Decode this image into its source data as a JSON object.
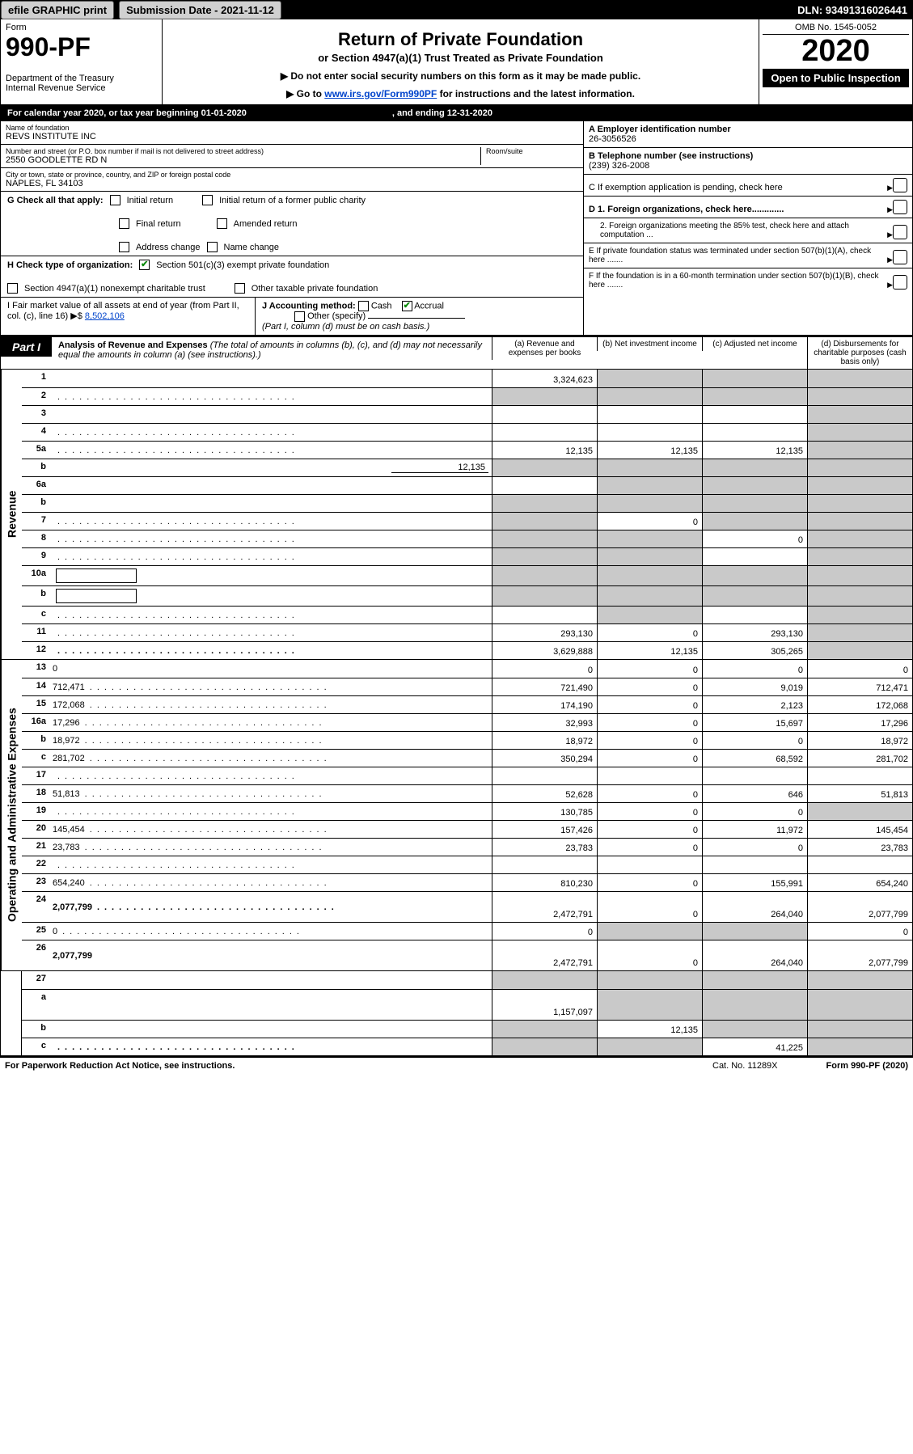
{
  "topbar": {
    "efile": "efile GRAPHIC print",
    "submission": "Submission Date - 2021-11-12",
    "dln": "DLN: 93491316026441"
  },
  "header": {
    "form_label": "Form",
    "form_number": "990-PF",
    "dept": "Department of the Treasury",
    "irs": "Internal Revenue Service",
    "title": "Return of Private Foundation",
    "subtitle": "or Section 4947(a)(1) Trust Treated as Private Foundation",
    "instr1": "▶ Do not enter social security numbers on this form as it may be made public.",
    "instr2_pre": "▶ Go to ",
    "instr2_link": "www.irs.gov/Form990PF",
    "instr2_post": " for instructions and the latest information.",
    "omb": "OMB No. 1545-0052",
    "year": "2020",
    "open": "Open to Public Inspection"
  },
  "calendar": {
    "begin": "For calendar year 2020, or tax year beginning 01-01-2020",
    "end": ", and ending 12-31-2020"
  },
  "ident": {
    "name_lbl": "Name of foundation",
    "name": "REVS INSTITUTE INC",
    "addr_lbl": "Number and street (or P.O. box number if mail is not delivered to street address)",
    "addr": "2550 GOODLETTE RD N",
    "room_lbl": "Room/suite",
    "city_lbl": "City or town, state or province, country, and ZIP or foreign postal code",
    "city": "NAPLES, FL  34103",
    "a_lbl": "A Employer identification number",
    "a_val": "26-3056526",
    "b_lbl": "B Telephone number (see instructions)",
    "b_val": "(239) 326-2008",
    "c_lbl": "C If exemption application is pending, check here",
    "d1": "D 1. Foreign organizations, check here.............",
    "d2": "2. Foreign organizations meeting the 85% test, check here and attach computation ...",
    "e": "E  If private foundation status was terminated under section 507(b)(1)(A), check here .......",
    "f": "F  If the foundation is in a 60-month termination under section 507(b)(1)(B), check here .......",
    "g_lbl": "G Check all that apply:",
    "g_initial": "Initial return",
    "g_initial_former": "Initial return of a former public charity",
    "g_final": "Final return",
    "g_amended": "Amended return",
    "g_addr": "Address change",
    "g_name": "Name change",
    "h_lbl": "H Check type of organization:",
    "h_501c3": "Section 501(c)(3) exempt private foundation",
    "h_4947": "Section 4947(a)(1) nonexempt charitable trust",
    "h_other": "Other taxable private foundation",
    "i_lbl": "I Fair market value of all assets at end of year (from Part II, col. (c), line 16) ▶$ ",
    "i_val": "8,502,106",
    "j_lbl": "J Accounting method:",
    "j_cash": "Cash",
    "j_accrual": "Accrual",
    "j_other": "Other (specify)",
    "j_note": "(Part I, column (d) must be on cash basis.)"
  },
  "part": {
    "label": "Part I",
    "title": "Analysis of Revenue and Expenses",
    "note": " (The total of amounts in columns (b), (c), and (d) may not necessarily equal the amounts in column (a) (see instructions).)",
    "col_a": "(a)  Revenue and expenses per books",
    "col_b": "(b)  Net investment income",
    "col_c": "(c)  Adjusted net income",
    "col_d": "(d)  Disbursements for charitable purposes (cash basis only)"
  },
  "sections": {
    "revenue": "Revenue",
    "expenses": "Operating and Administrative Expenses"
  },
  "lines": {
    "1": {
      "n": "1",
      "d": "",
      "a": "3,324,623",
      "b": "",
      "c": "",
      "bgray": true,
      "cgray": true,
      "dgray": true
    },
    "2": {
      "n": "2",
      "d": "",
      "a": "",
      "b": "",
      "c": "",
      "agray": true,
      "bgray": true,
      "cgray": true,
      "dgray": true,
      "dots": true
    },
    "3": {
      "n": "3",
      "d": "",
      "a": "",
      "b": "",
      "c": "",
      "dgray": true
    },
    "4": {
      "n": "4",
      "d": "",
      "a": "",
      "b": "",
      "c": "",
      "dgray": true,
      "dots": true
    },
    "5a": {
      "n": "5a",
      "d": "",
      "a": "12,135",
      "b": "12,135",
      "c": "12,135",
      "dgray": true,
      "dots": true
    },
    "5b": {
      "n": "b",
      "d": "",
      "inset": "12,135",
      "a": "",
      "b": "",
      "c": "",
      "agray": true,
      "bgray": true,
      "cgray": true,
      "dgray": true
    },
    "6a": {
      "n": "6a",
      "d": "",
      "a": "",
      "b": "",
      "c": "",
      "bgray": true,
      "cgray": true,
      "dgray": true
    },
    "6b": {
      "n": "b",
      "d": "",
      "a": "",
      "b": "",
      "c": "",
      "agray": true,
      "bgray": true,
      "cgray": true,
      "dgray": true
    },
    "7": {
      "n": "7",
      "d": "",
      "a": "",
      "b": "0",
      "c": "",
      "agray": true,
      "cgray": true,
      "dgray": true,
      "dots": true
    },
    "8": {
      "n": "8",
      "d": "",
      "a": "",
      "b": "",
      "c": "0",
      "agray": true,
      "bgray": true,
      "dgray": true,
      "dots": true
    },
    "9": {
      "n": "9",
      "d": "",
      "a": "",
      "b": "",
      "c": "",
      "agray": true,
      "bgray": true,
      "dgray": true,
      "dots": true
    },
    "10a": {
      "n": "10a",
      "d": "",
      "a": "",
      "b": "",
      "c": "",
      "agray": true,
      "bgray": true,
      "cgray": true,
      "dgray": true,
      "box": true
    },
    "10b": {
      "n": "b",
      "d": "",
      "a": "",
      "b": "",
      "c": "",
      "agray": true,
      "bgray": true,
      "cgray": true,
      "dgray": true,
      "box": true,
      "dots": true
    },
    "10c": {
      "n": "c",
      "d": "",
      "a": "",
      "b": "",
      "c": "",
      "bgray": true,
      "dgray": true,
      "dots": true
    },
    "11": {
      "n": "11",
      "d": "",
      "a": "293,130",
      "b": "0",
      "c": "293,130",
      "dgray": true,
      "dots": true
    },
    "12": {
      "n": "12",
      "d": "",
      "a": "3,629,888",
      "b": "12,135",
      "c": "305,265",
      "dgray": true,
      "bold": true,
      "dots": true
    },
    "13": {
      "n": "13",
      "d": "0",
      "a": "0",
      "b": "0",
      "c": "0"
    },
    "14": {
      "n": "14",
      "d": "712,471",
      "a": "721,490",
      "b": "0",
      "c": "9,019",
      "dots": true
    },
    "15": {
      "n": "15",
      "d": "172,068",
      "a": "174,190",
      "b": "0",
      "c": "2,123",
      "dots": true
    },
    "16a": {
      "n": "16a",
      "d": "17,296",
      "a": "32,993",
      "b": "0",
      "c": "15,697",
      "dots": true
    },
    "16b": {
      "n": "b",
      "d": "18,972",
      "a": "18,972",
      "b": "0",
      "c": "0",
      "dots": true
    },
    "16c": {
      "n": "c",
      "d": "281,702",
      "a": "350,294",
      "b": "0",
      "c": "68,592",
      "dots": true
    },
    "17": {
      "n": "17",
      "d": "",
      "a": "",
      "b": "",
      "c": "",
      "dots": true
    },
    "18": {
      "n": "18",
      "d": "51,813",
      "a": "52,628",
      "b": "0",
      "c": "646",
      "dots": true
    },
    "19": {
      "n": "19",
      "d": "",
      "a": "130,785",
      "b": "0",
      "c": "0",
      "dgray": true,
      "dots": true
    },
    "20": {
      "n": "20",
      "d": "145,454",
      "a": "157,426",
      "b": "0",
      "c": "11,972",
      "dots": true
    },
    "21": {
      "n": "21",
      "d": "23,783",
      "a": "23,783",
      "b": "0",
      "c": "0",
      "dots": true
    },
    "22": {
      "n": "22",
      "d": "",
      "a": "",
      "b": "",
      "c": "",
      "dots": true
    },
    "23": {
      "n": "23",
      "d": "654,240",
      "a": "810,230",
      "b": "0",
      "c": "155,991",
      "dots": true
    },
    "24": {
      "n": "24",
      "d": "2,077,799",
      "a": "2,472,791",
      "b": "0",
      "c": "264,040",
      "bold": true,
      "tall": true,
      "dots": true
    },
    "25": {
      "n": "25",
      "d": "0",
      "a": "0",
      "b": "",
      "c": "",
      "bgray": true,
      "cgray": true,
      "dots": true
    },
    "26": {
      "n": "26",
      "d": "2,077,799",
      "a": "2,472,791",
      "b": "0",
      "c": "264,040",
      "bold": true,
      "tall": true
    },
    "27": {
      "n": "27",
      "d": "",
      "a": "",
      "b": "",
      "c": "",
      "agray": true,
      "bgray": true,
      "cgray": true,
      "dgray": true
    },
    "27a": {
      "n": "a",
      "d": "",
      "a": "1,157,097",
      "b": "",
      "c": "",
      "bgray": true,
      "cgray": true,
      "dgray": true,
      "bold": true,
      "tall": true
    },
    "27b": {
      "n": "b",
      "d": "",
      "a": "",
      "b": "12,135",
      "c": "",
      "agray": true,
      "cgray": true,
      "dgray": true,
      "bold": true
    },
    "27c": {
      "n": "c",
      "d": "",
      "a": "",
      "b": "",
      "c": "41,225",
      "agray": true,
      "bgray": true,
      "dgray": true,
      "bold": true,
      "dots": true
    }
  },
  "footer": {
    "left": "For Paperwork Reduction Act Notice, see instructions.",
    "mid": "Cat. No. 11289X",
    "right": "Form 990-PF (2020)"
  },
  "colors": {
    "link": "#0044cc",
    "gray": "#c9c9c9",
    "check": "#0a8a0a"
  }
}
